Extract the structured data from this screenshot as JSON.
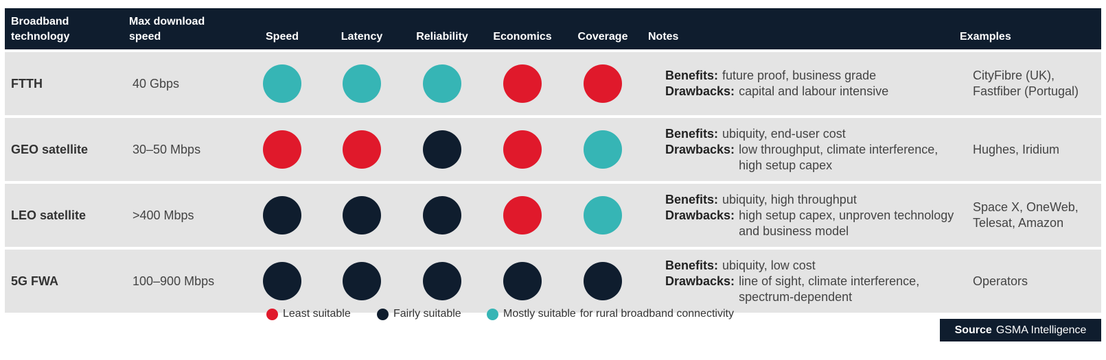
{
  "colors": {
    "header_bg": "#0f1d2e",
    "row_bg": "#e4e4e4",
    "least": "#e0192b",
    "fairly": "#0f1d2e",
    "mostly": "#36b5b5"
  },
  "headers": {
    "technology": "Broadband technology",
    "max_speed": "Max download speed",
    "speed": "Speed",
    "latency": "Latency",
    "reliability": "Reliability",
    "economics": "Economics",
    "coverage": "Coverage",
    "notes": "Notes",
    "examples": "Examples"
  },
  "rows": [
    {
      "technology": "FTTH",
      "max_speed": "40 Gbps",
      "ratings": {
        "speed": "mostly",
        "latency": "mostly",
        "reliability": "mostly",
        "economics": "least",
        "coverage": "least"
      },
      "benefits_label": "Benefits:",
      "benefits": "future proof, business grade",
      "drawbacks_label": "Drawbacks:",
      "drawbacks": "capital and labour intensive",
      "examples": "CityFibre (UK), Fastfiber (Portugal)"
    },
    {
      "technology": "GEO satellite",
      "max_speed": "30–50 Mbps",
      "ratings": {
        "speed": "least",
        "latency": "least",
        "reliability": "fairly",
        "economics": "least",
        "coverage": "mostly"
      },
      "benefits_label": "Benefits:",
      "benefits": "ubiquity, end-user cost",
      "drawbacks_label": "Drawbacks:",
      "drawbacks": "low throughput, climate interference, high setup capex",
      "examples": "Hughes, Iridium"
    },
    {
      "technology": "LEO satellite",
      "max_speed": ">400 Mbps",
      "ratings": {
        "speed": "fairly",
        "latency": "fairly",
        "reliability": "fairly",
        "economics": "least",
        "coverage": "mostly"
      },
      "benefits_label": "Benefits:",
      "benefits": "ubiquity, high throughput",
      "drawbacks_label": "Drawbacks:",
      "drawbacks": "high setup capex, unproven technology and business model",
      "examples": "Space X, OneWeb, Telesat, Amazon"
    },
    {
      "technology": "5G FWA",
      "max_speed": "100–900 Mbps",
      "ratings": {
        "speed": "fairly",
        "latency": "fairly",
        "reliability": "fairly",
        "economics": "fairly",
        "coverage": "fairly"
      },
      "benefits_label": "Benefits:",
      "benefits": "ubiquity, low cost",
      "drawbacks_label": "Drawbacks:",
      "drawbacks": "line of sight, climate interference, spectrum-dependent",
      "examples": "Operators"
    }
  ],
  "legend": {
    "least": "Least suitable",
    "fairly": "Fairly suitable",
    "mostly": "Mostly suitable",
    "suffix": "for rural broadband connectivity"
  },
  "source": {
    "label": "Source",
    "name": "GSMA Intelligence"
  }
}
